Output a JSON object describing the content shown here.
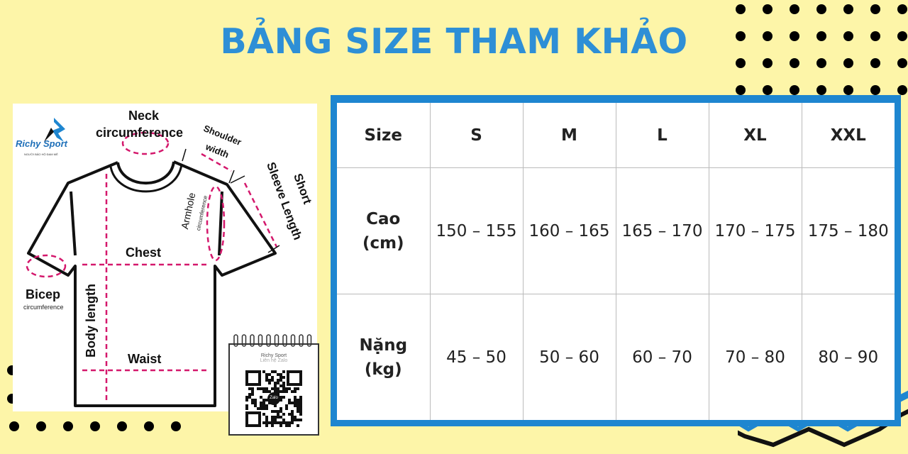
{
  "title": "BẢNG SIZE THAM KHẢO",
  "colors": {
    "accent": "#2e8fd6",
    "border": "#1e86d0",
    "background": "#fdf5a8",
    "measure": "#d4186c"
  },
  "brand": {
    "name": "Richy Sport",
    "tagline": "NGƯỜI BẢO HỘ ĐAM MÊ"
  },
  "diagram": {
    "neck": "Neck",
    "neck_sub": "circumference",
    "shoulder": "Shoulder",
    "shoulder_sub": "width",
    "sleeve1": "Short",
    "sleeve2": "Sleeve Length",
    "armhole": "Armhole",
    "armhole_sub": "circumference",
    "chest": "Chest",
    "bicep": "Bicep",
    "bicep_sub": "circumference",
    "body_length": "Body length",
    "waist": "Waist"
  },
  "qr": {
    "name": "Richy Sport",
    "subtitle": "Liên hệ Zalo",
    "center": "Zalo"
  },
  "size_table": {
    "headers": [
      "Size",
      "S",
      "M",
      "L",
      "XL",
      "XXL"
    ],
    "rows": [
      {
        "label1": "Cao",
        "label2": "(cm)",
        "values": [
          "150 – 155",
          "160 – 165",
          "165 – 170",
          "170 – 175",
          "175 – 180"
        ]
      },
      {
        "label1": "Nặng",
        "label2": "(kg)",
        "values": [
          "45 – 50",
          "50 – 60",
          "60 – 70",
          "70 – 80",
          "80 – 90"
        ]
      }
    ]
  }
}
